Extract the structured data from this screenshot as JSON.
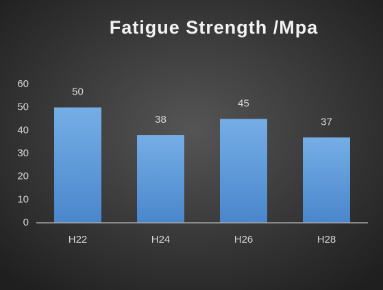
{
  "chart_data": {
    "type": "bar",
    "title": "Fatigue Strength /Mpa",
    "categories": [
      "H22",
      "H24",
      "H26",
      "H28"
    ],
    "values": [
      50,
      38,
      45,
      37
    ],
    "color": "#5b9bd5",
    "ylim": [
      0,
      60
    ],
    "yticks": [
      0,
      10,
      20,
      30,
      40,
      50,
      60
    ],
    "grid": false,
    "data_labels": true
  }
}
